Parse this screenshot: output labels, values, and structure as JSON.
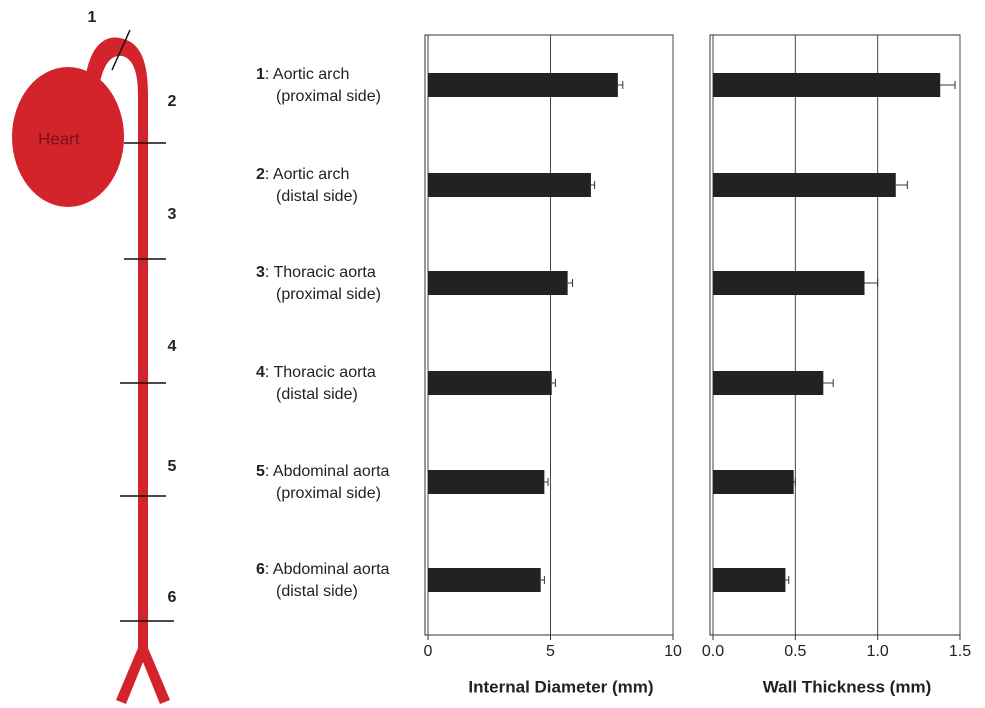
{
  "diagram": {
    "heart_label": "Heart"
  },
  "segments": [
    {
      "number": "1",
      "name": ": Aortic arch",
      "detail": "(proximal side)"
    },
    {
      "number": "2",
      "name": ": Aortic arch",
      "detail": "(distal side)"
    },
    {
      "number": "3",
      "name": ": Thoracic aorta",
      "detail": "(proximal side)"
    },
    {
      "number": "4",
      "name": ": Thoracic aorta",
      "detail": "(distal side)"
    },
    {
      "number": "5",
      "name": ": Abdominal aorta",
      "detail": "(proximal side)"
    },
    {
      "number": "6",
      "name": ": Abdominal aorta",
      "detail": "(distal side)"
    }
  ],
  "chart_data": [
    {
      "type": "bar",
      "orientation": "horizontal",
      "xlabel": "Internal Diameter (mm)",
      "values": [
        7.75,
        6.65,
        5.7,
        5.05,
        4.75,
        4.6
      ],
      "errors": [
        0.2,
        0.15,
        0.2,
        0.15,
        0.15,
        0.15
      ],
      "color": "#222222",
      "xlim": [
        0,
        10
      ],
      "xticks": [
        0,
        5,
        10
      ],
      "grid": true
    },
    {
      "type": "bar",
      "orientation": "horizontal",
      "xlabel": "Wall Thickness (mm)",
      "values": [
        1.38,
        1.11,
        0.92,
        0.67,
        0.49,
        0.44
      ],
      "errors": [
        0.09,
        0.07,
        0.08,
        0.06,
        0.01,
        0.02
      ],
      "color": "#222222",
      "xlim": [
        0,
        1.5
      ],
      "xticks": [
        {
          "value": 0,
          "label": "0.0"
        },
        0.5,
        {
          "value": 1,
          "label": "1.0"
        },
        1.5
      ],
      "grid": true
    }
  ]
}
